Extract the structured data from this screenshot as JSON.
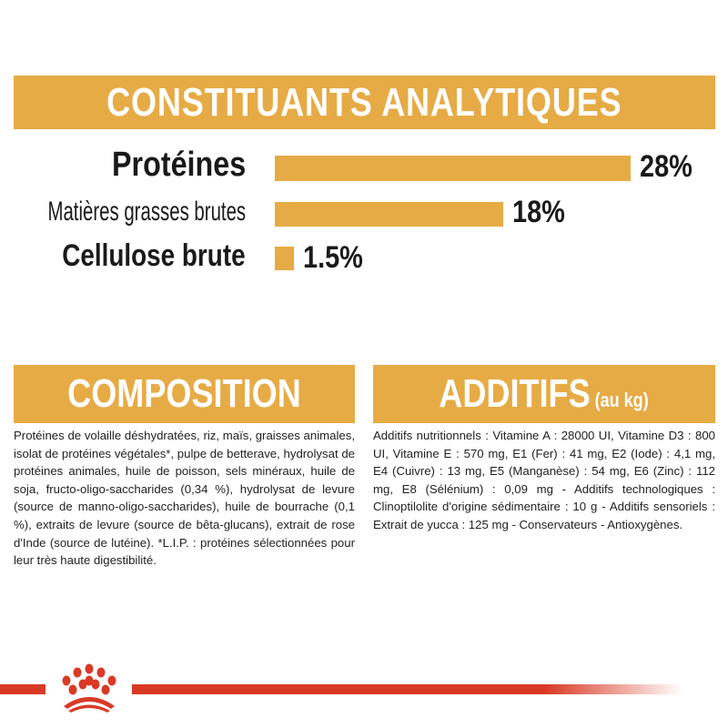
{
  "analytical": {
    "title": "CONSTITUANTS ANALYTIQUES",
    "items": [
      {
        "label": "Protéines",
        "value": "28%"
      },
      {
        "label": "Matières grasses brutes",
        "value": "18%"
      },
      {
        "label": "Cellulose brute",
        "value": "1.5%"
      }
    ]
  },
  "chart_data": {
    "type": "bar",
    "orientation": "horizontal",
    "categories": [
      "Protéines",
      "Matières grasses brutes",
      "Cellulose brute"
    ],
    "values": [
      28,
      18,
      1.5
    ],
    "data_labels": [
      "28%",
      "18%",
      "1.5%"
    ],
    "title": "CONSTITUANTS ANALYTIQUES",
    "color": "#e6ab45"
  },
  "composition": {
    "title": "COMPOSITION",
    "text": "Protéines de volaille déshydratées, riz, maïs, graisses animales, isolat de protéines végétales*, pulpe de betterave, hydrolysat de protéines animales, huile de poisson, sels minéraux, huile de soja, fructo-oligo-saccharides (0,34 %), hydrolysat de levure (source de manno-oligo-saccharides), huile de bourrache (0,1 %), extraits de levure (source de bêta-glucans), extrait de rose d'Inde (source de lutéine). *L.I.P. : protéines sélectionnées pour leur très haute digestibilité."
  },
  "additives": {
    "title": "ADDITIFS",
    "subtitle": "(au kg)",
    "text": "Additifs nutritionnels : Vitamine A : 28000 UI, Vitamine D3 : 800 UI, Vitamine E : 570 mg, E1 (Fer) : 41 mg, E2 (Iode) : 4,1 mg, E4 (Cuivre) : 13 mg, E5 (Manganèse) : 54 mg, E6 (Zinc) : 112 mg, E8 (Sélénium) : 0,09 mg - Additifs technologiques : Clinoptilolite d'origine sédimentaire : 10 g - Additifs sensoriels : Extrait de yucca : 125 mg - Conservateurs - Antioxygènes."
  },
  "colors": {
    "accent": "#e6ab45",
    "brand_red": "#d93a26"
  },
  "footer": {
    "logo_icon": "royal-crown-icon"
  }
}
